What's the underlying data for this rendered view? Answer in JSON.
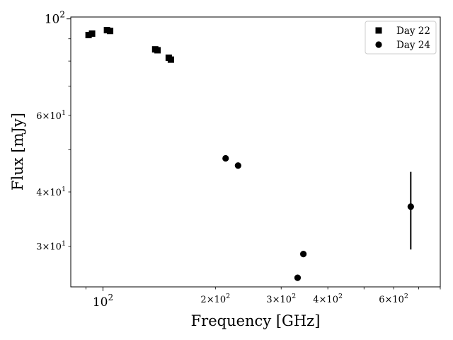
{
  "chart_data": {
    "type": "scatter",
    "xscale": "log",
    "yscale": "log",
    "xlabel": "Frequency [GHz]",
    "ylabel": "Flux [mJy]",
    "xlim": [
      82,
      800
    ],
    "ylim": [
      24.2,
      101
    ],
    "grid": false,
    "legend_position": "top-right",
    "x_major_ticks": [
      {
        "value": 100,
        "base": "10",
        "exp": "2"
      }
    ],
    "x_minor_ticks": [
      {
        "value": 200,
        "mant": "2",
        "base": "10",
        "exp": "2"
      },
      {
        "value": 300,
        "mant": "3",
        "base": "10",
        "exp": "2"
      },
      {
        "value": 400,
        "mant": "4",
        "base": "10",
        "exp": "2"
      },
      {
        "value": 500,
        "mant": "",
        "base": "",
        "exp": ""
      },
      {
        "value": 600,
        "mant": "6",
        "base": "10",
        "exp": "2"
      },
      {
        "value": 700,
        "mant": "",
        "base": "",
        "exp": ""
      },
      {
        "value": 800,
        "mant": "",
        "base": "",
        "exp": ""
      },
      {
        "value": 90,
        "mant": "",
        "base": "",
        "exp": ""
      }
    ],
    "y_major_ticks": [
      {
        "value": 100,
        "base": "10",
        "exp": "2"
      }
    ],
    "y_minor_ticks": [
      {
        "value": 30,
        "mant": "3",
        "base": "10",
        "exp": "1"
      },
      {
        "value": 40,
        "mant": "4",
        "base": "10",
        "exp": "1"
      },
      {
        "value": 50,
        "mant": "",
        "base": "",
        "exp": ""
      },
      {
        "value": 60,
        "mant": "6",
        "base": "10",
        "exp": "1"
      },
      {
        "value": 70,
        "mant": "",
        "base": "",
        "exp": ""
      },
      {
        "value": 80,
        "mant": "",
        "base": "",
        "exp": ""
      },
      {
        "value": 90,
        "mant": "",
        "base": "",
        "exp": ""
      }
    ],
    "series": [
      {
        "name": "Day 22",
        "marker": "square",
        "color": "#000000",
        "points": [
          {
            "x": 91.5,
            "y": 91.8
          },
          {
            "x": 93.5,
            "y": 92.5
          },
          {
            "x": 102.5,
            "y": 94.2
          },
          {
            "x": 104.5,
            "y": 93.8
          },
          {
            "x": 138,
            "y": 85.1
          },
          {
            "x": 140,
            "y": 84.7
          },
          {
            "x": 150,
            "y": 81.4
          },
          {
            "x": 152,
            "y": 80.6
          }
        ]
      },
      {
        "name": "Day 24",
        "marker": "circle",
        "color": "#000000",
        "points": [
          {
            "x": 213,
            "y": 47.8
          },
          {
            "x": 230,
            "y": 46.0
          },
          {
            "x": 332,
            "y": 25.4
          },
          {
            "x": 344,
            "y": 28.8
          },
          {
            "x": 667,
            "y": 37.0,
            "yerr": 7.5
          }
        ]
      }
    ]
  }
}
